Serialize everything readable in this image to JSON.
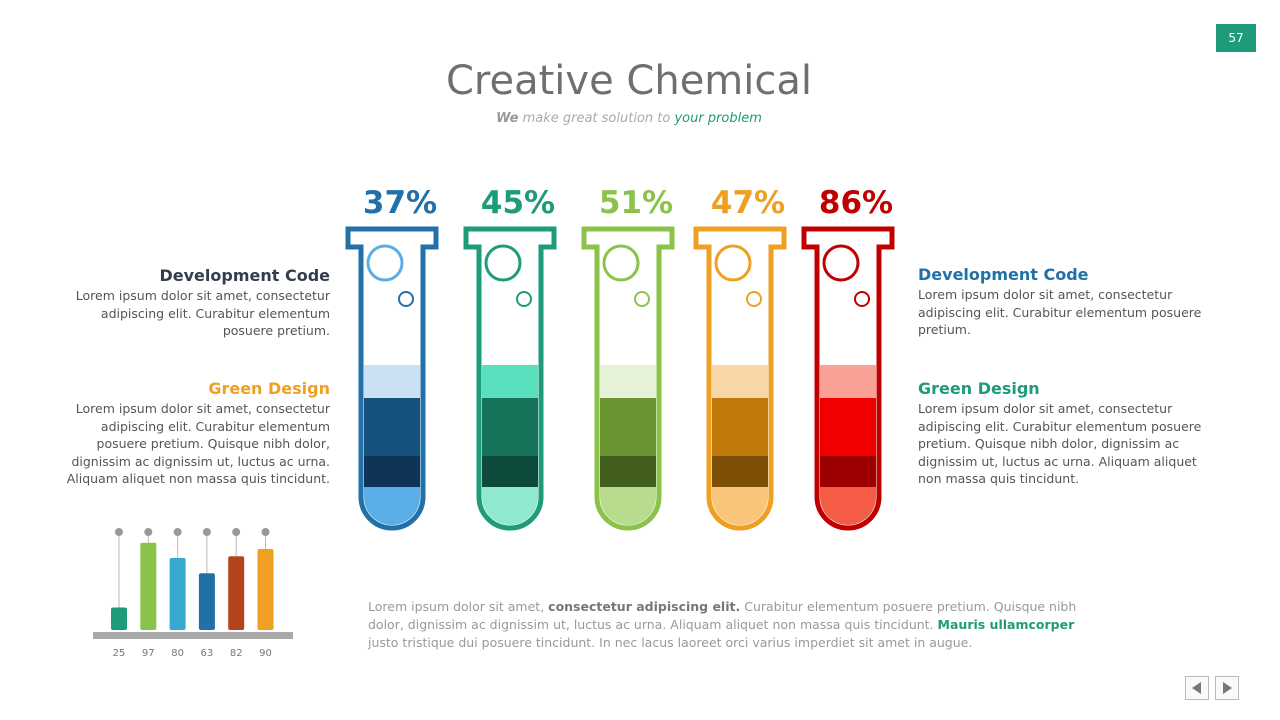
{
  "page_number": "57",
  "header": {
    "title": "Creative Chemical",
    "subtitle": [
      "We",
      "make great solution to",
      "your problem"
    ]
  },
  "tubes": [
    {
      "label": "37%",
      "color": "#2270a8"
    },
    {
      "label": "45%",
      "color": "#1e9b7a"
    },
    {
      "label": "51%",
      "color": "#8bc34a"
    },
    {
      "label": "47%",
      "color": "#efa023"
    },
    {
      "label": "86%",
      "color": "#c00000"
    }
  ],
  "left": [
    {
      "heading": "Development Code",
      "text": "Lorem ipsum dolor sit amet, consectetur adipiscing elit. Curabitur elementum posuere pretium."
    },
    {
      "heading": "Green Design",
      "text": "Lorem ipsum dolor sit amet, consectetur adipiscing elit. Curabitur elementum posuere pretium. Quisque nibh dolor, dignissim ac dignissim ut, luctus ac urna.  Aliquam aliquet non massa quis tincidunt."
    }
  ],
  "right": [
    {
      "heading": "Development Code",
      "text": "Lorem ipsum dolor sit amet, consectetur adipiscing elit. Curabitur elementum posuere pretium."
    },
    {
      "heading": "Green Design",
      "text": "Lorem ipsum dolor sit amet, consectetur adipiscing elit. Curabitur elementum posuere pretium. Quisque nibh dolor, dignissim ac dignissim ut, luctus ac urna.  Aliquam aliquet non massa quis tincidunt."
    }
  ],
  "footer": [
    "Lorem ipsum dolor sit amet,",
    "consectetur adipiscing elit.",
    "Curabitur elementum posuere pretium. Quisque nibh dolor, dignissim ac dignissim ut, luctus ac urna.  Aliquam aliquet non massa quis tincidunt.",
    "Mauris ullamcorper",
    "justo tristique dui posuere tincidunt. In nec lacus laoreet orci varius imperdiet sit amet in augue."
  ],
  "chart_data": {
    "type": "bar",
    "values": [
      25,
      97,
      80,
      63,
      82,
      90
    ],
    "colors": [
      "#1e9b7a",
      "#8bc34a",
      "#36a9cf",
      "#2270a8",
      "#b5441c",
      "#efa023"
    ],
    "ylim": [
      0,
      100
    ]
  }
}
